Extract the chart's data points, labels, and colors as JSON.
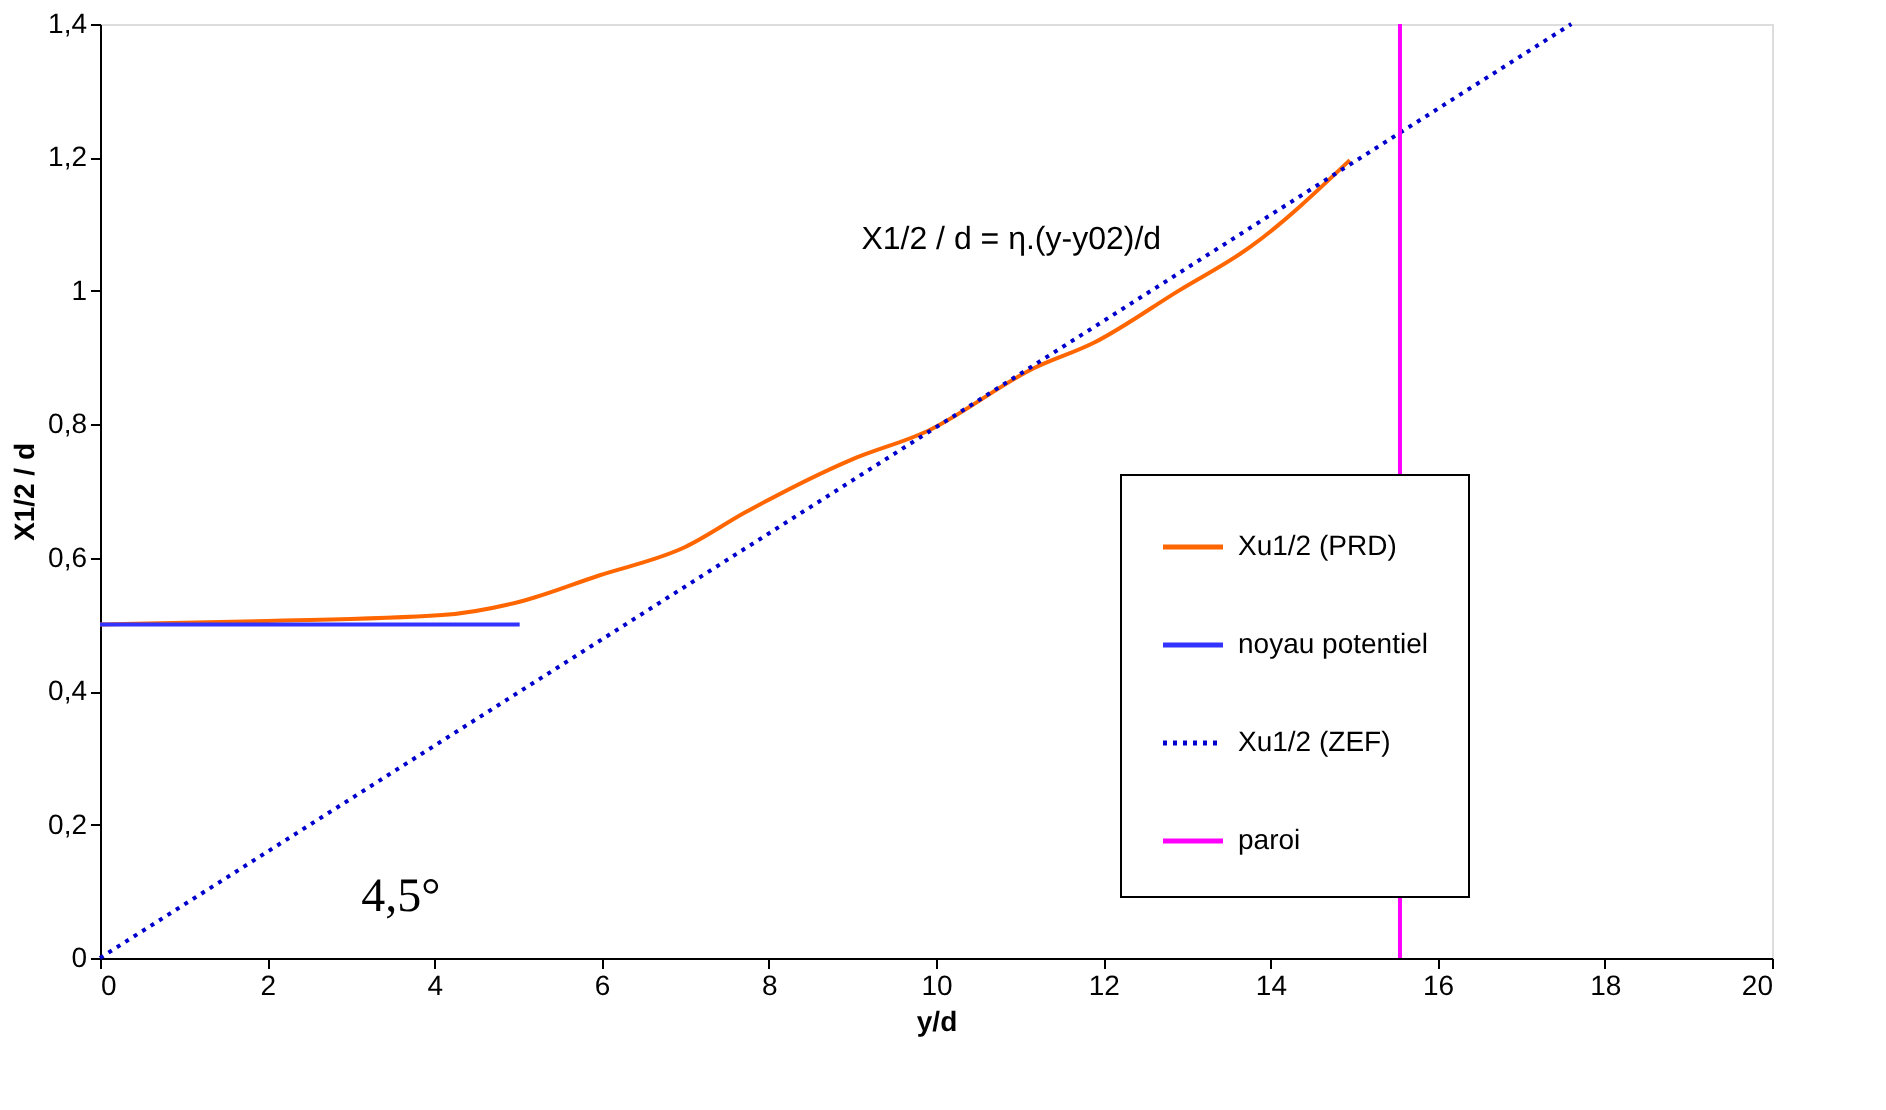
{
  "chart_data": {
    "type": "line",
    "xlabel": "y/d",
    "ylabel": "X1/2 / d",
    "xlim": [
      0,
      20
    ],
    "xticks": [
      0,
      2,
      4,
      6,
      8,
      10,
      12,
      14,
      16,
      18,
      20
    ],
    "ylim": [
      0,
      1.4
    ],
    "yticks": [
      0,
      {
        "value": 0.2,
        "label": "0,2"
      },
      {
        "value": 0.4,
        "label": "0,4"
      },
      {
        "value": 0.6,
        "label": "0,6"
      },
      {
        "value": 0.8,
        "label": "0,8"
      },
      1,
      {
        "value": 1.2,
        "label": "1,2"
      },
      {
        "value": 1.4,
        "label": "1,4"
      }
    ],
    "grid": false,
    "legend": "right",
    "marker": "none",
    "series": [
      {
        "name": "Xu1/2 (PRD)",
        "color": "#ff6600",
        "line_style": "solid",
        "x": [
          0,
          2,
          4.09,
          5.02,
          5.96,
          7.0,
          7.72,
          8.97,
          9.9,
          11.17,
          11.9,
          12.9,
          13.75,
          14.95
        ],
        "values": [
          0.5,
          0.505,
          0.514,
          0.534,
          0.573,
          0.616,
          0.668,
          0.746,
          0.79,
          0.884,
          0.923,
          1.0,
          1.065,
          1.196
        ]
      },
      {
        "name": "noyau potentiel",
        "color": "#3333ff",
        "line_style": "solid",
        "x": [
          0,
          5.02
        ],
        "values": [
          0.5,
          0.5
        ]
      },
      {
        "name": "Xu1/2 (ZEF)",
        "color": "#0000cc",
        "line_style": "dotted",
        "x": [
          0,
          17.6
        ],
        "values": [
          0,
          1.4
        ]
      },
      {
        "name": "paroi",
        "color": "#ff00ff",
        "line_style": "solid",
        "x": [
          15.55,
          15.55
        ],
        "values": [
          0,
          1.4
        ]
      }
    ],
    "annotations": [
      "X1/2 / d = η.(y-y02)/d",
      "4,5°"
    ]
  }
}
